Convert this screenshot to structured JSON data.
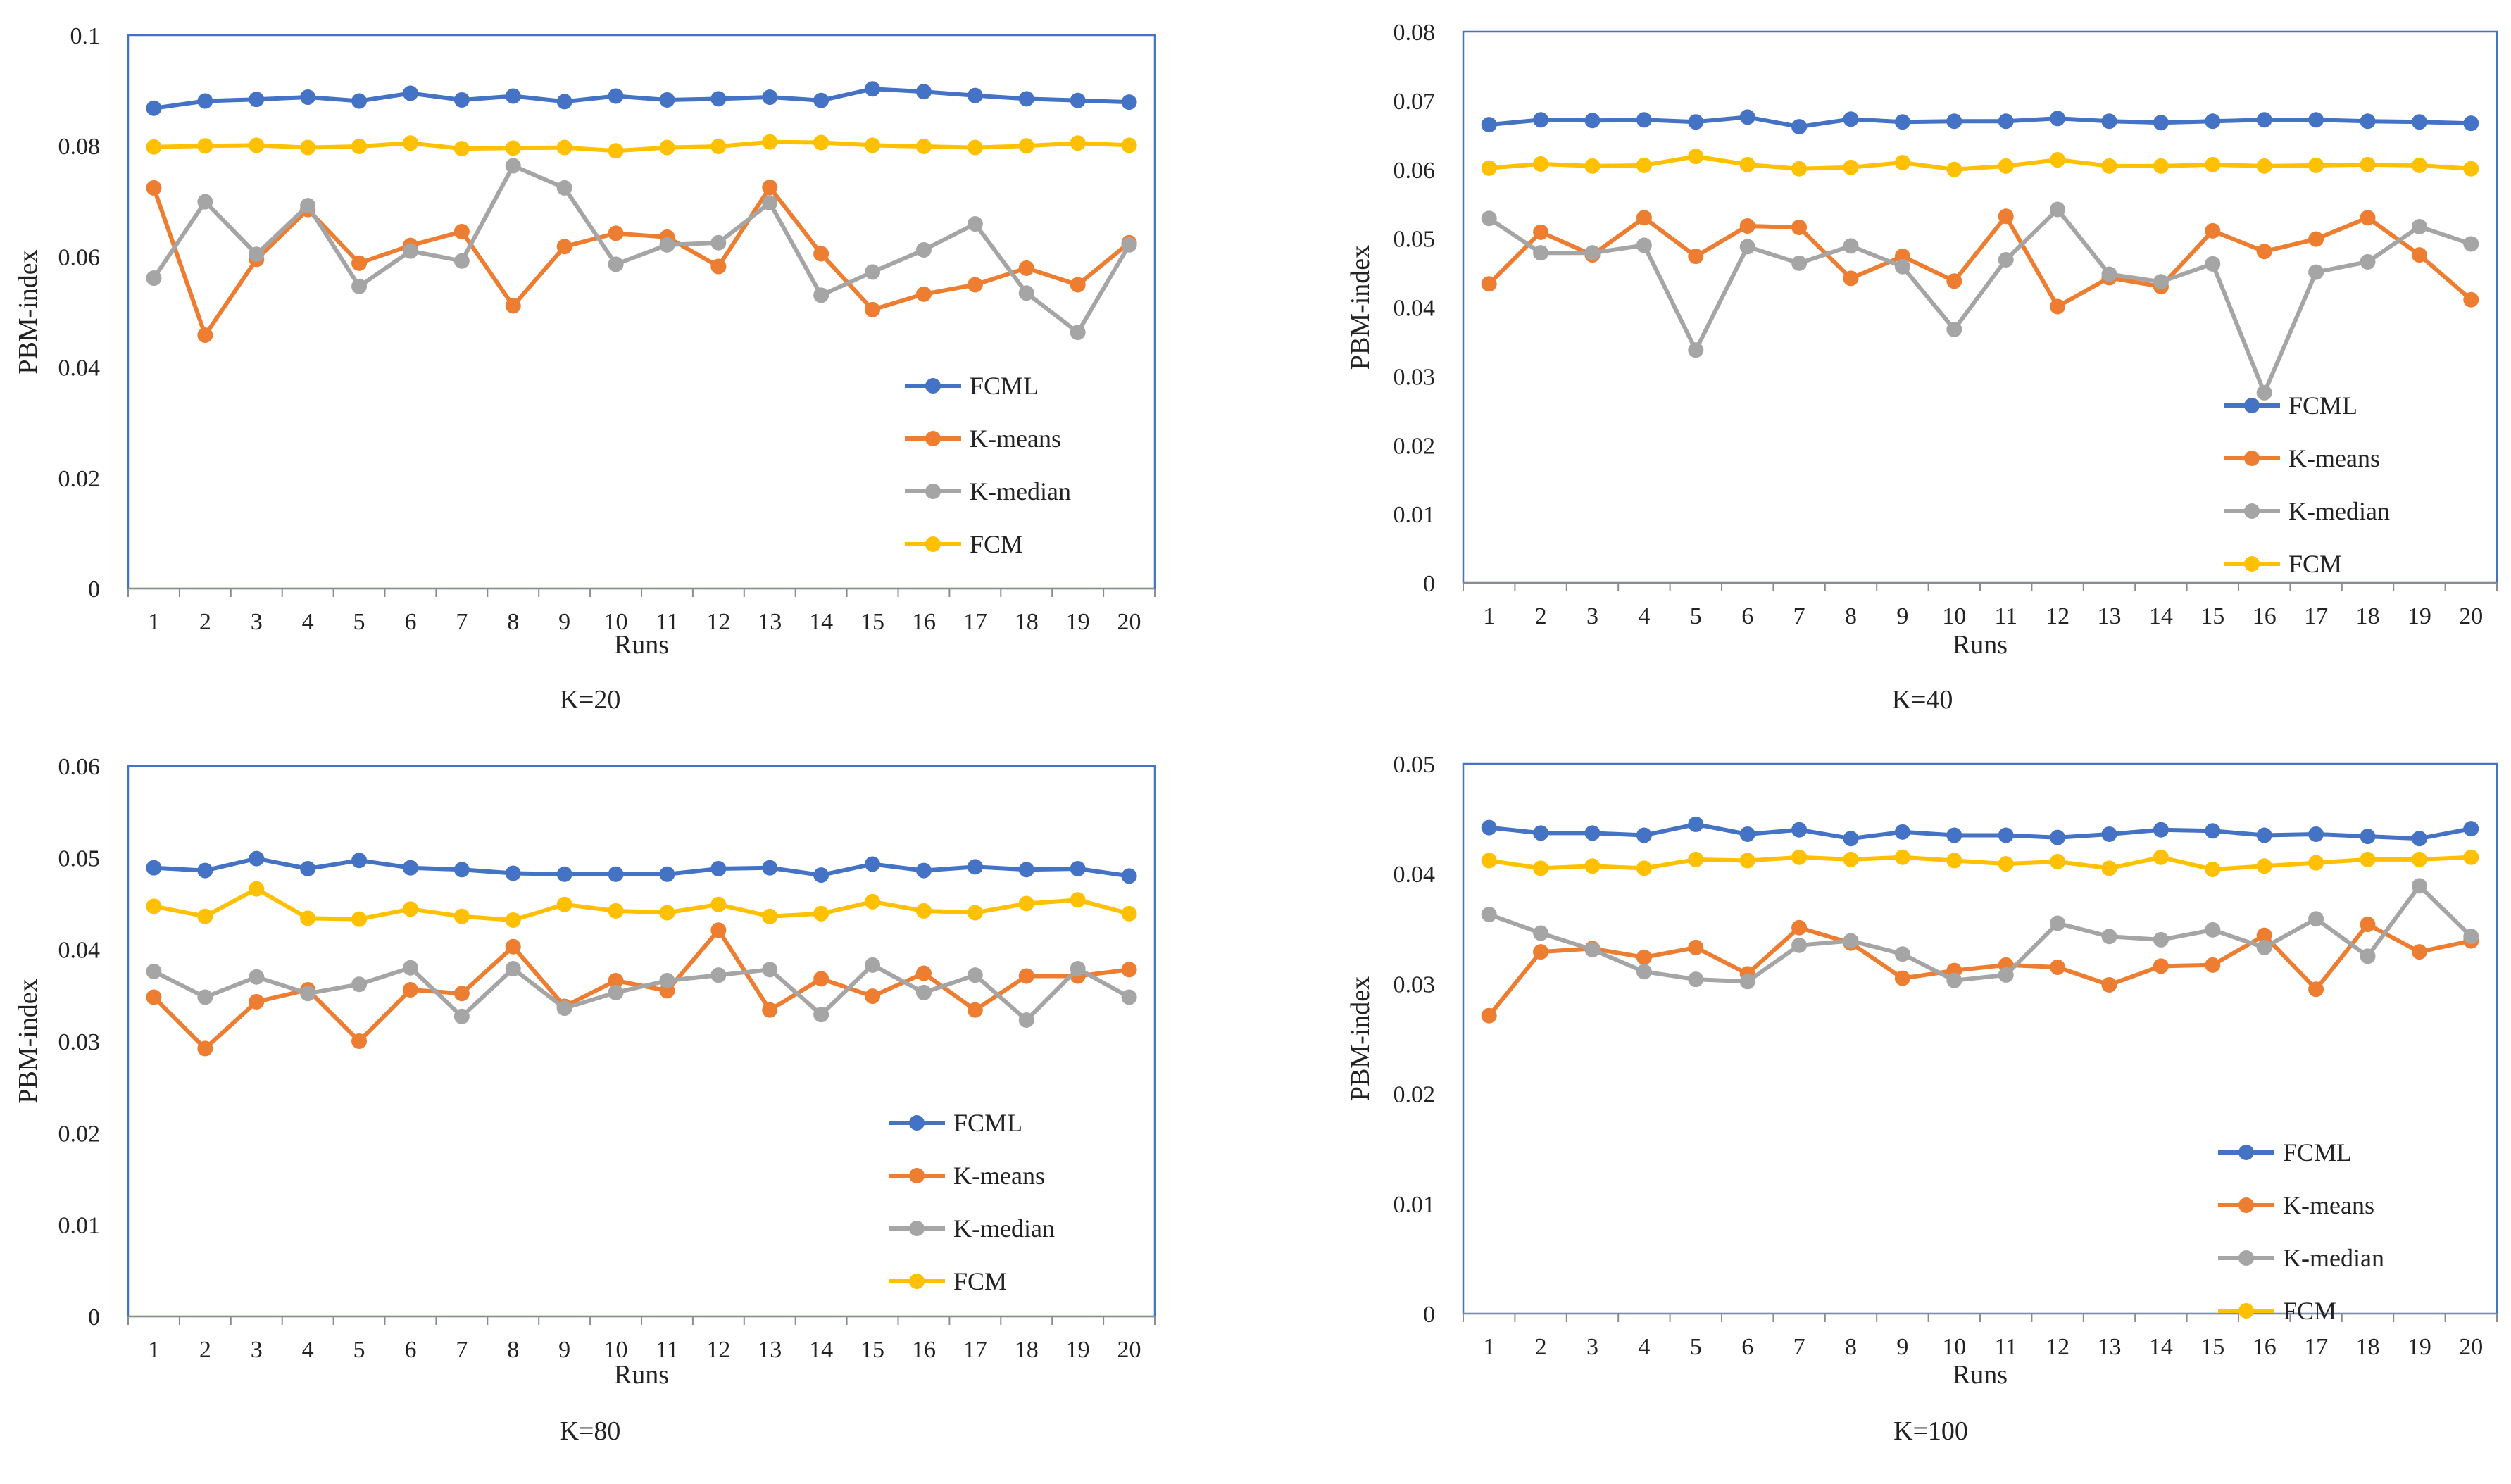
{
  "chart_data": [
    {
      "type": "line",
      "caption": "K=20",
      "title": "",
      "xlabel": "Runs",
      "ylabel": "PBM-index",
      "x": [
        1,
        2,
        3,
        4,
        5,
        6,
        7,
        8,
        9,
        10,
        11,
        12,
        13,
        14,
        15,
        16,
        17,
        18,
        19,
        20
      ],
      "x_tick_labels": [
        "1",
        "2",
        "3",
        "4",
        "5",
        "6",
        "7",
        "8",
        "9",
        "10",
        "11",
        "12",
        "13",
        "14",
        "15",
        "16",
        "17",
        "18",
        "19",
        "20"
      ],
      "ylim": [
        0,
        0.1
      ],
      "y_ticks": [
        0,
        0.02,
        0.04,
        0.06,
        0.08,
        0.1
      ],
      "y_tick_labels": [
        "0",
        "0.02",
        "0.04",
        "0.06",
        "0.08",
        "0.1"
      ],
      "grid": false,
      "legend_position": "lower-right",
      "series": [
        {
          "name": "FCML",
          "color": "#4472C4",
          "values": [
            0.0868,
            0.0881,
            0.0884,
            0.0888,
            0.0881,
            0.0895,
            0.0883,
            0.089,
            0.088,
            0.089,
            0.0883,
            0.0885,
            0.0888,
            0.0882,
            0.0903,
            0.0898,
            0.0891,
            0.0885,
            0.0882,
            0.0879
          ]
        },
        {
          "name": "K-means",
          "color": "#ED7D31",
          "values": [
            0.0724,
            0.0458,
            0.0595,
            0.0685,
            0.0588,
            0.062,
            0.0645,
            0.0511,
            0.0618,
            0.0642,
            0.0635,
            0.0582,
            0.0725,
            0.0605,
            0.0504,
            0.0532,
            0.0549,
            0.0579,
            0.0549,
            0.0625
          ]
        },
        {
          "name": "K-median",
          "color": "#A5A5A5",
          "values": [
            0.0561,
            0.0699,
            0.0604,
            0.0692,
            0.0546,
            0.061,
            0.0592,
            0.0764,
            0.0724,
            0.0586,
            0.0621,
            0.0625,
            0.0697,
            0.053,
            0.0572,
            0.0612,
            0.0659,
            0.0534,
            0.0463,
            0.0621
          ]
        },
        {
          "name": "FCM",
          "color": "#FFC000",
          "values": [
            0.0798,
            0.08,
            0.0801,
            0.0797,
            0.0799,
            0.0805,
            0.0795,
            0.0796,
            0.0797,
            0.0791,
            0.0797,
            0.0799,
            0.0807,
            0.0806,
            0.0801,
            0.0799,
            0.0797,
            0.08,
            0.0805,
            0.0801
          ]
        }
      ]
    },
    {
      "type": "line",
      "caption": "K=40",
      "title": "",
      "xlabel": "Runs",
      "ylabel": "PBM-index",
      "x": [
        1,
        2,
        3,
        4,
        5,
        6,
        7,
        8,
        9,
        10,
        11,
        12,
        13,
        14,
        15,
        16,
        17,
        18,
        19,
        20
      ],
      "x_tick_labels": [
        "1",
        "2",
        "3",
        "4",
        "5",
        "6",
        "7",
        "8",
        "9",
        "10",
        "11",
        "12",
        "13",
        "14",
        "15",
        "16",
        "17",
        "18",
        "19",
        "20"
      ],
      "ylim": [
        0,
        0.08
      ],
      "y_ticks": [
        0,
        0.01,
        0.02,
        0.03,
        0.04,
        0.05,
        0.06,
        0.07,
        0.08
      ],
      "y_tick_labels": [
        "0",
        "0.01",
        "0.02",
        "0.03",
        "0.04",
        "0.05",
        "0.06",
        "0.07",
        "0.08"
      ],
      "grid": false,
      "legend_position": "lower-right",
      "series": [
        {
          "name": "FCML",
          "color": "#4472C4",
          "values": [
            0.0665,
            0.0672,
            0.0671,
            0.0672,
            0.0669,
            0.0676,
            0.0662,
            0.0673,
            0.0669,
            0.067,
            0.067,
            0.0674,
            0.067,
            0.0668,
            0.067,
            0.0672,
            0.0672,
            0.067,
            0.0669,
            0.0667
          ]
        },
        {
          "name": "K-means",
          "color": "#ED7D31",
          "values": [
            0.0434,
            0.0509,
            0.0476,
            0.053,
            0.0474,
            0.0518,
            0.0516,
            0.0442,
            0.0474,
            0.0438,
            0.0532,
            0.0401,
            0.0443,
            0.043,
            0.0511,
            0.0481,
            0.0499,
            0.053,
            0.0476,
            0.0411
          ]
        },
        {
          "name": "K-median",
          "color": "#A5A5A5",
          "values": [
            0.0529,
            0.0479,
            0.0479,
            0.049,
            0.0338,
            0.0488,
            0.0464,
            0.0489,
            0.0459,
            0.0368,
            0.0469,
            0.0542,
            0.0448,
            0.0437,
            0.0463,
            0.0276,
            0.0451,
            0.0466,
            0.0517,
            0.0492
          ]
        },
        {
          "name": "FCM",
          "color": "#FFC000",
          "values": [
            0.0602,
            0.0608,
            0.0605,
            0.0606,
            0.0619,
            0.0607,
            0.0601,
            0.0603,
            0.061,
            0.06,
            0.0605,
            0.0614,
            0.0605,
            0.0605,
            0.0607,
            0.0605,
            0.0606,
            0.0607,
            0.0606,
            0.0601
          ]
        }
      ]
    },
    {
      "type": "line",
      "caption": "K=80",
      "title": "",
      "xlabel": "Runs",
      "ylabel": "PBM-index",
      "x": [
        1,
        2,
        3,
        4,
        5,
        6,
        7,
        8,
        9,
        10,
        11,
        12,
        13,
        14,
        15,
        16,
        17,
        18,
        19,
        20
      ],
      "x_tick_labels": [
        "1",
        "2",
        "3",
        "4",
        "5",
        "6",
        "7",
        "8",
        "9",
        "10",
        "11",
        "12",
        "13",
        "14",
        "15",
        "16",
        "17",
        "18",
        "19",
        "20"
      ],
      "ylim": [
        0,
        0.06
      ],
      "y_ticks": [
        0,
        0.01,
        0.02,
        0.03,
        0.04,
        0.05,
        0.06
      ],
      "y_tick_labels": [
        "0",
        "0.01",
        "0.02",
        "0.03",
        "0.04",
        "0.05",
        "0.06"
      ],
      "grid": false,
      "legend_position": "lower-right",
      "series": [
        {
          "name": "FCML",
          "color": "#4472C4",
          "values": [
            0.0489,
            0.0486,
            0.0499,
            0.0488,
            0.0497,
            0.0489,
            0.0487,
            0.0483,
            0.0482,
            0.0482,
            0.0482,
            0.0488,
            0.0489,
            0.0481,
            0.0493,
            0.0486,
            0.049,
            0.0487,
            0.0488,
            0.048
          ]
        },
        {
          "name": "K-means",
          "color": "#ED7D31",
          "values": [
            0.0348,
            0.0292,
            0.0343,
            0.0356,
            0.03,
            0.0356,
            0.0352,
            0.0403,
            0.0338,
            0.0366,
            0.0355,
            0.0421,
            0.0334,
            0.0368,
            0.0349,
            0.0374,
            0.0334,
            0.0371,
            0.0371,
            0.0378
          ]
        },
        {
          "name": "K-median",
          "color": "#A5A5A5",
          "values": [
            0.0376,
            0.0348,
            0.037,
            0.0352,
            0.0362,
            0.038,
            0.0327,
            0.0379,
            0.0336,
            0.0353,
            0.0366,
            0.0372,
            0.0378,
            0.0329,
            0.0383,
            0.0353,
            0.0372,
            0.0323,
            0.0379,
            0.0348
          ]
        },
        {
          "name": "FCM",
          "color": "#FFC000",
          "values": [
            0.0447,
            0.0436,
            0.0466,
            0.0434,
            0.0433,
            0.0444,
            0.0436,
            0.0432,
            0.0449,
            0.0442,
            0.044,
            0.0449,
            0.0436,
            0.0439,
            0.0452,
            0.0442,
            0.044,
            0.045,
            0.0454,
            0.0439
          ]
        }
      ]
    },
    {
      "type": "line",
      "caption": "K=100",
      "title": "",
      "xlabel": "Runs",
      "ylabel": "PBM-index",
      "x": [
        1,
        2,
        3,
        4,
        5,
        6,
        7,
        8,
        9,
        10,
        11,
        12,
        13,
        14,
        15,
        16,
        17,
        18,
        19,
        20
      ],
      "x_tick_labels": [
        "1",
        "2",
        "3",
        "4",
        "5",
        "6",
        "7",
        "8",
        "9",
        "10",
        "11",
        "12",
        "13",
        "14",
        "15",
        "16",
        "17",
        "18",
        "19",
        "20"
      ],
      "ylim": [
        0,
        0.05
      ],
      "y_ticks": [
        0,
        0.01,
        0.02,
        0.03,
        0.04,
        0.05
      ],
      "y_tick_labels": [
        "0",
        "0.01",
        "0.02",
        "0.03",
        "0.04",
        "0.05"
      ],
      "grid": false,
      "legend_position": "lower-right",
      "series": [
        {
          "name": "FCML",
          "color": "#4472C4",
          "values": [
            0.0442,
            0.0437,
            0.0437,
            0.0435,
            0.0445,
            0.0436,
            0.044,
            0.0432,
            0.0438,
            0.0435,
            0.0435,
            0.0433,
            0.0436,
            0.044,
            0.0439,
            0.0435,
            0.0436,
            0.0434,
            0.0432,
            0.0441
          ]
        },
        {
          "name": "K-means",
          "color": "#ED7D31",
          "values": [
            0.0271,
            0.0329,
            0.0332,
            0.0324,
            0.0333,
            0.0309,
            0.0351,
            0.0337,
            0.0305,
            0.0312,
            0.0317,
            0.0315,
            0.0299,
            0.0316,
            0.0317,
            0.0344,
            0.0295,
            0.0354,
            0.0329,
            0.0339
          ]
        },
        {
          "name": "K-median",
          "color": "#A5A5A5",
          "values": [
            0.0363,
            0.0346,
            0.0331,
            0.0311,
            0.0304,
            0.0302,
            0.0335,
            0.0339,
            0.0327,
            0.0303,
            0.0308,
            0.0355,
            0.0343,
            0.034,
            0.0349,
            0.0333,
            0.0359,
            0.0325,
            0.0389,
            0.0343
          ]
        },
        {
          "name": "FCM",
          "color": "#FFC000",
          "values": [
            0.0412,
            0.0405,
            0.0407,
            0.0405,
            0.0413,
            0.0412,
            0.0415,
            0.0413,
            0.0415,
            0.0412,
            0.0409,
            0.0411,
            0.0405,
            0.0415,
            0.0404,
            0.0407,
            0.041,
            0.0413,
            0.0413,
            0.0415
          ]
        }
      ]
    }
  ]
}
